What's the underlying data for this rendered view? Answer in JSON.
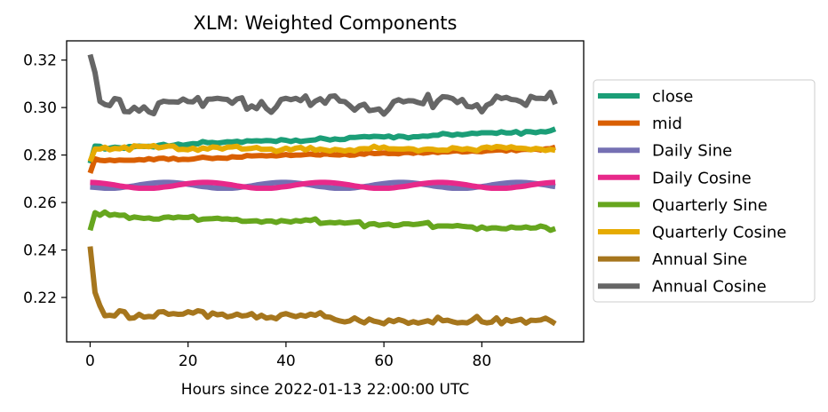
{
  "chart_data": {
    "type": "line",
    "title": "XLM: Weighted Components",
    "xlabel": "Hours since 2022-01-13 22:00:00 UTC",
    "ylabel": "",
    "xlim": [
      -4.8,
      100.8
    ],
    "ylim": [
      0.2013,
      0.3281
    ],
    "x_ticks": [
      0,
      20,
      40,
      60,
      80
    ],
    "y_ticks": [
      0.22,
      0.24,
      0.26,
      0.28,
      0.3,
      0.32
    ],
    "x_tick_labels": [
      "0",
      "20",
      "40",
      "60",
      "80"
    ],
    "y_tick_labels": [
      "0.22",
      "0.24",
      "0.26",
      "0.28",
      "0.30",
      "0.32"
    ],
    "legend_position": "right, outside plot",
    "grid": false,
    "x": [
      0,
      1,
      2,
      3,
      4,
      5,
      6,
      7,
      8,
      9,
      10,
      11,
      12,
      13,
      14,
      15,
      16,
      17,
      18,
      19,
      20,
      21,
      22,
      23,
      24,
      25,
      26,
      27,
      28,
      29,
      30,
      31,
      32,
      33,
      34,
      35,
      36,
      37,
      38,
      39,
      40,
      41,
      42,
      43,
      44,
      45,
      46,
      47,
      48,
      49,
      50,
      51,
      52,
      53,
      54,
      55,
      56,
      57,
      58,
      59,
      60,
      61,
      62,
      63,
      64,
      65,
      66,
      67,
      68,
      69,
      70,
      71,
      72,
      73,
      74,
      75,
      76,
      77,
      78,
      79,
      80,
      81,
      82,
      83,
      84,
      85,
      86,
      87,
      88,
      89,
      90,
      91,
      92,
      93,
      94,
      95
    ],
    "series": [
      {
        "name": "close",
        "color": "#1b9e77",
        "values": [
          0.2765,
          0.2838,
          0.2837,
          0.2825,
          0.2829,
          0.2833,
          0.2831,
          0.2828,
          0.2836,
          0.2835,
          0.2838,
          0.2836,
          0.2837,
          0.2834,
          0.2841,
          0.2845,
          0.2838,
          0.2841,
          0.2846,
          0.2841,
          0.2845,
          0.2848,
          0.2847,
          0.2857,
          0.2852,
          0.2853,
          0.285,
          0.2853,
          0.2856,
          0.2855,
          0.2858,
          0.2853,
          0.286,
          0.2859,
          0.286,
          0.2859,
          0.2861,
          0.286,
          0.2857,
          0.2865,
          0.2862,
          0.2857,
          0.2863,
          0.2857,
          0.286,
          0.2862,
          0.2864,
          0.2872,
          0.2868,
          0.2863,
          0.2868,
          0.2865,
          0.2866,
          0.2874,
          0.2874,
          0.2876,
          0.2878,
          0.2876,
          0.2879,
          0.2878,
          0.2876,
          0.288,
          0.2872,
          0.288,
          0.2878,
          0.2872,
          0.2877,
          0.2877,
          0.288,
          0.2879,
          0.2883,
          0.2883,
          0.2891,
          0.2888,
          0.2883,
          0.2888,
          0.2885,
          0.2888,
          0.2892,
          0.289,
          0.2894,
          0.2894,
          0.2894,
          0.2891,
          0.2898,
          0.2893,
          0.2893,
          0.2899,
          0.2888,
          0.2899,
          0.2898,
          0.2894,
          0.2899,
          0.2897,
          0.2902,
          0.291
        ]
      },
      {
        "name": "mid",
        "color": "#d95f02",
        "values": [
          0.2724,
          0.2784,
          0.2778,
          0.2776,
          0.2779,
          0.2776,
          0.2779,
          0.2778,
          0.2778,
          0.2778,
          0.2781,
          0.2779,
          0.2785,
          0.278,
          0.2786,
          0.2787,
          0.2781,
          0.2787,
          0.278,
          0.2782,
          0.2781,
          0.2783,
          0.2787,
          0.2791,
          0.2788,
          0.2785,
          0.2788,
          0.2787,
          0.2786,
          0.2793,
          0.2791,
          0.2791,
          0.2798,
          0.2796,
          0.2797,
          0.2798,
          0.2796,
          0.2798,
          0.2796,
          0.2799,
          0.2802,
          0.2798,
          0.28,
          0.28,
          0.2802,
          0.2804,
          0.2801,
          0.28,
          0.2806,
          0.2802,
          0.2801,
          0.28,
          0.2804,
          0.2799,
          0.28,
          0.2806,
          0.2803,
          0.281,
          0.2806,
          0.2807,
          0.2809,
          0.2806,
          0.2807,
          0.2805,
          0.281,
          0.2811,
          0.2807,
          0.2812,
          0.2808,
          0.281,
          0.2814,
          0.281,
          0.2814,
          0.2813,
          0.2816,
          0.2818,
          0.2813,
          0.2814,
          0.2817,
          0.2815,
          0.2814,
          0.2818,
          0.2819,
          0.2821,
          0.2822,
          0.2817,
          0.2824,
          0.2818,
          0.2823,
          0.2824,
          0.2823,
          0.2825,
          0.2821,
          0.2826,
          0.2827,
          0.2833
        ]
      },
      {
        "name": "Daily Sine",
        "color": "#7570b3",
        "values": [
          0.2665,
          0.2664,
          0.2662,
          0.266,
          0.266,
          0.266,
          0.2662,
          0.2665,
          0.2667,
          0.267,
          0.2674,
          0.2677,
          0.268,
          0.2682,
          0.2684,
          0.2685,
          0.2685,
          0.2684,
          0.2682,
          0.268,
          0.2677,
          0.2674,
          0.267,
          0.2667,
          0.2665,
          0.2662,
          0.266,
          0.266,
          0.266,
          0.266,
          0.2662,
          0.2665,
          0.2667,
          0.267,
          0.2674,
          0.2677,
          0.268,
          0.2682,
          0.2684,
          0.2685,
          0.2685,
          0.2684,
          0.2682,
          0.268,
          0.2677,
          0.2674,
          0.267,
          0.2667,
          0.2665,
          0.2662,
          0.266,
          0.266,
          0.266,
          0.266,
          0.2662,
          0.2665,
          0.2667,
          0.267,
          0.2674,
          0.2677,
          0.268,
          0.2682,
          0.2684,
          0.2685,
          0.2685,
          0.2684,
          0.2682,
          0.268,
          0.2677,
          0.2674,
          0.267,
          0.2667,
          0.2665,
          0.2662,
          0.266,
          0.266,
          0.266,
          0.266,
          0.2662,
          0.2665,
          0.2667,
          0.267,
          0.2674,
          0.2677,
          0.268,
          0.2682,
          0.2684,
          0.2685,
          0.2685,
          0.2684,
          0.2682,
          0.268,
          0.2677,
          0.2674,
          0.267,
          0.2667
        ]
      },
      {
        "name": "Daily Cosine",
        "color": "#e7298a",
        "values": [
          0.2685,
          0.2684,
          0.2682,
          0.268,
          0.2677,
          0.2674,
          0.267,
          0.2667,
          0.2665,
          0.2662,
          0.266,
          0.266,
          0.266,
          0.266,
          0.2662,
          0.2665,
          0.2667,
          0.267,
          0.2674,
          0.2677,
          0.268,
          0.2682,
          0.2684,
          0.2685,
          0.2685,
          0.2684,
          0.2682,
          0.268,
          0.2677,
          0.2674,
          0.267,
          0.2667,
          0.2665,
          0.2662,
          0.266,
          0.266,
          0.266,
          0.266,
          0.2662,
          0.2665,
          0.2667,
          0.267,
          0.2674,
          0.2677,
          0.268,
          0.2682,
          0.2684,
          0.2685,
          0.2685,
          0.2684,
          0.2682,
          0.268,
          0.2677,
          0.2674,
          0.267,
          0.2667,
          0.2665,
          0.2662,
          0.266,
          0.266,
          0.266,
          0.266,
          0.2662,
          0.2665,
          0.2667,
          0.267,
          0.2674,
          0.2677,
          0.268,
          0.2682,
          0.2684,
          0.2685,
          0.2685,
          0.2684,
          0.2682,
          0.268,
          0.2677,
          0.2674,
          0.267,
          0.2667,
          0.2665,
          0.2662,
          0.266,
          0.266,
          0.266,
          0.266,
          0.2662,
          0.2665,
          0.2667,
          0.267,
          0.2674,
          0.2677,
          0.268,
          0.2682,
          0.2684,
          0.2685
        ]
      },
      {
        "name": "Quarterly Sine",
        "color": "#66a61e",
        "values": [
          0.2483,
          0.2557,
          0.2546,
          0.256,
          0.2546,
          0.255,
          0.2546,
          0.2547,
          0.2533,
          0.2539,
          0.2536,
          0.2533,
          0.2535,
          0.253,
          0.253,
          0.2537,
          0.2539,
          0.2535,
          0.2539,
          0.2537,
          0.2537,
          0.2542,
          0.2525,
          0.253,
          0.2531,
          0.2532,
          0.2534,
          0.253,
          0.2531,
          0.2528,
          0.2529,
          0.2521,
          0.2521,
          0.2522,
          0.2523,
          0.2517,
          0.2522,
          0.2522,
          0.2516,
          0.2524,
          0.2521,
          0.2518,
          0.2524,
          0.2521,
          0.2527,
          0.2524,
          0.2531,
          0.2512,
          0.2514,
          0.2516,
          0.2514,
          0.2517,
          0.2513,
          0.2515,
          0.2517,
          0.2519,
          0.2498,
          0.2509,
          0.2511,
          0.2504,
          0.2507,
          0.2509,
          0.2502,
          0.2504,
          0.251,
          0.251,
          0.2507,
          0.2509,
          0.2512,
          0.2516,
          0.2495,
          0.2501,
          0.2501,
          0.2501,
          0.25,
          0.2503,
          0.25,
          0.2498,
          0.2497,
          0.2487,
          0.2497,
          0.2489,
          0.2493,
          0.2493,
          0.249,
          0.2489,
          0.2497,
          0.2493,
          0.2493,
          0.2497,
          0.2492,
          0.2493,
          0.2501,
          0.2496,
          0.2483,
          0.249
        ]
      },
      {
        "name": "Quarterly Cosine",
        "color": "#e6ab02",
        "values": [
          0.2773,
          0.2825,
          0.2825,
          0.2833,
          0.2822,
          0.2828,
          0.2826,
          0.2834,
          0.2821,
          0.2839,
          0.2836,
          0.2837,
          0.2835,
          0.284,
          0.283,
          0.2834,
          0.2838,
          0.2838,
          0.2823,
          0.2824,
          0.2822,
          0.2829,
          0.282,
          0.283,
          0.2825,
          0.2834,
          0.2832,
          0.2825,
          0.2833,
          0.2834,
          0.2837,
          0.2825,
          0.2826,
          0.2828,
          0.2832,
          0.2824,
          0.2824,
          0.2825,
          0.2815,
          0.2821,
          0.2829,
          0.2821,
          0.2829,
          0.2832,
          0.2821,
          0.2832,
          0.282,
          0.2825,
          0.2821,
          0.2817,
          0.2824,
          0.2821,
          0.2817,
          0.2822,
          0.2817,
          0.2826,
          0.2827,
          0.2826,
          0.2837,
          0.2828,
          0.2834,
          0.2826,
          0.2826,
          0.2825,
          0.2825,
          0.2827,
          0.2825,
          0.2817,
          0.2823,
          0.2825,
          0.2824,
          0.282,
          0.2821,
          0.282,
          0.2831,
          0.2828,
          0.2823,
          0.2827,
          0.2823,
          0.2818,
          0.283,
          0.2834,
          0.2829,
          0.2836,
          0.2834,
          0.2829,
          0.2835,
          0.2829,
          0.2829,
          0.2827,
          0.2822,
          0.2828,
          0.2825,
          0.2819,
          0.2824,
          0.282
        ]
      },
      {
        "name": "Annual Sine",
        "color": "#a6761d",
        "values": [
          0.2415,
          0.2221,
          0.2165,
          0.2123,
          0.2125,
          0.2122,
          0.2144,
          0.214,
          0.2112,
          0.2114,
          0.2129,
          0.2117,
          0.212,
          0.2118,
          0.2139,
          0.214,
          0.2129,
          0.2132,
          0.2129,
          0.213,
          0.214,
          0.2134,
          0.2144,
          0.214,
          0.2117,
          0.2135,
          0.2127,
          0.213,
          0.2118,
          0.2122,
          0.213,
          0.2122,
          0.2124,
          0.2132,
          0.2114,
          0.2125,
          0.2113,
          0.2117,
          0.211,
          0.2127,
          0.2132,
          0.2125,
          0.2119,
          0.2126,
          0.2121,
          0.213,
          0.2125,
          0.2136,
          0.2119,
          0.2117,
          0.2107,
          0.2101,
          0.2097,
          0.2101,
          0.2114,
          0.2102,
          0.2093,
          0.2109,
          0.21,
          0.2096,
          0.2089,
          0.2105,
          0.2098,
          0.2107,
          0.2101,
          0.2091,
          0.2098,
          0.2092,
          0.2097,
          0.2102,
          0.2093,
          0.2117,
          0.2102,
          0.2104,
          0.2098,
          0.2093,
          0.2095,
          0.2093,
          0.2104,
          0.212,
          0.2098,
          0.2093,
          0.2096,
          0.2114,
          0.2089,
          0.2107,
          0.2099,
          0.2103,
          0.2108,
          0.2092,
          0.2104,
          0.2103,
          0.2105,
          0.2113,
          0.2102,
          0.2089
        ]
      },
      {
        "name": "Annual Cosine",
        "color": "#666666",
        "values": [
          0.3223,
          0.3147,
          0.3026,
          0.3013,
          0.3008,
          0.3038,
          0.3034,
          0.2983,
          0.2982,
          0.3001,
          0.2985,
          0.3003,
          0.2982,
          0.2974,
          0.3019,
          0.3027,
          0.3024,
          0.3024,
          0.3023,
          0.3036,
          0.3025,
          0.3024,
          0.3042,
          0.3005,
          0.3035,
          0.3036,
          0.3039,
          0.3036,
          0.3034,
          0.3018,
          0.3036,
          0.3041,
          0.2993,
          0.3007,
          0.2995,
          0.3025,
          0.2996,
          0.298,
          0.3002,
          0.3034,
          0.3039,
          0.3033,
          0.3039,
          0.3029,
          0.3049,
          0.3009,
          0.3027,
          0.3037,
          0.3018,
          0.3047,
          0.3049,
          0.3027,
          0.3025,
          0.3008,
          0.2989,
          0.3007,
          0.3014,
          0.2987,
          0.299,
          0.2994,
          0.2972,
          0.2994,
          0.3025,
          0.3033,
          0.3024,
          0.3029,
          0.3028,
          0.3021,
          0.3016,
          0.3055,
          0.3,
          0.3028,
          0.3046,
          0.3044,
          0.3038,
          0.3021,
          0.3034,
          0.3005,
          0.3002,
          0.3012,
          0.2982,
          0.301,
          0.302,
          0.3048,
          0.3038,
          0.3043,
          0.3034,
          0.3032,
          0.3024,
          0.3009,
          0.3047,
          0.3039,
          0.3039,
          0.3037,
          0.3064,
          0.3014
        ]
      }
    ]
  }
}
